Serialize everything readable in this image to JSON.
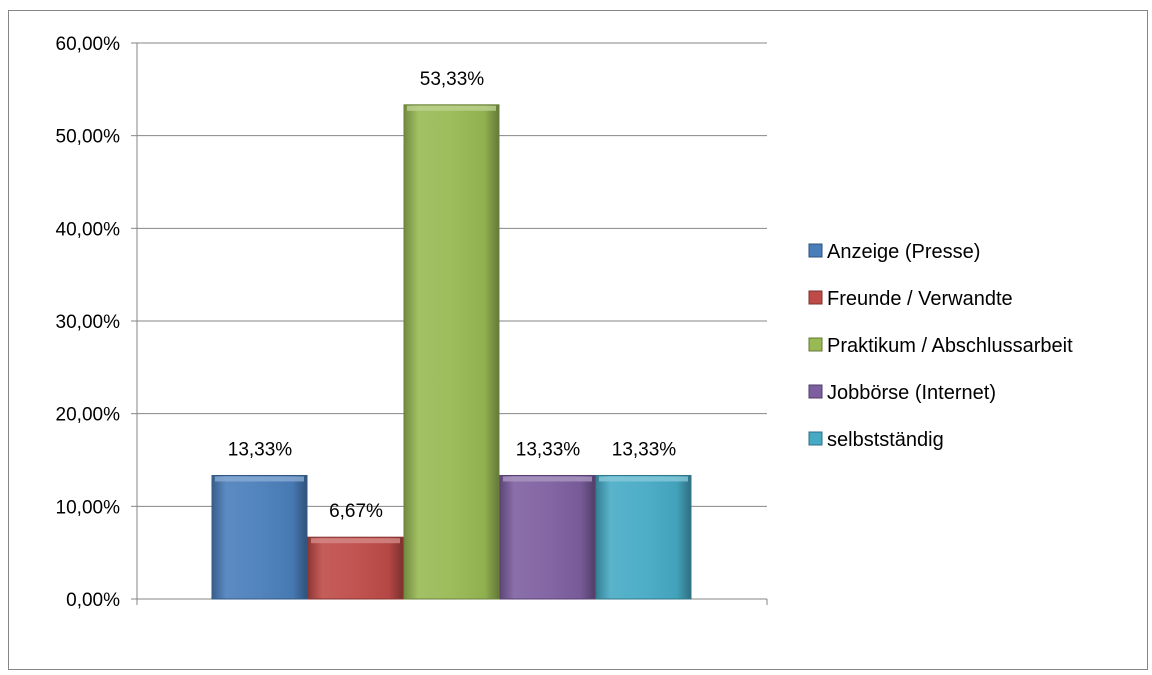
{
  "chart_data": {
    "type": "bar",
    "title": "",
    "xlabel": "",
    "ylabel": "",
    "ylim": [
      0,
      60
    ],
    "yticks": [
      0,
      10,
      20,
      30,
      40,
      50,
      60
    ],
    "ytick_labels": [
      "0,00%",
      "10,00%",
      "20,00%",
      "30,00%",
      "40,00%",
      "50,00%",
      "60,00%"
    ],
    "grid": true,
    "legend_position": "right",
    "series": [
      {
        "name": "Anzeige (Presse)",
        "value": 13.33,
        "label": "13,33%",
        "color": "#4a7ebb"
      },
      {
        "name": "Freunde / Verwandte",
        "value": 6.67,
        "label": "6,67%",
        "color": "#be4b48"
      },
      {
        "name": "Praktikum / Abschlussarbeit",
        "value": 53.33,
        "label": "53,33%",
        "color": "#98b954"
      },
      {
        "name": "Jobbörse (Internet)",
        "value": 13.33,
        "label": "13,33%",
        "color": "#7d5fa0"
      },
      {
        "name": "selbstständig",
        "value": 13.33,
        "label": "13,33%",
        "color": "#46aac5"
      }
    ]
  }
}
